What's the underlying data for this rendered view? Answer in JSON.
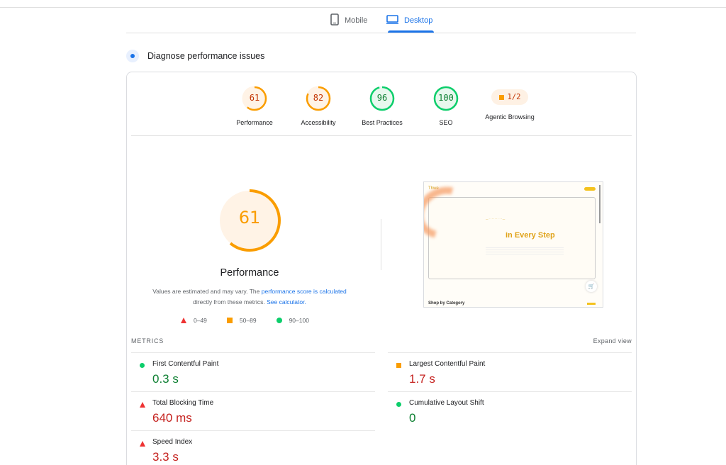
{
  "tabs": [
    {
      "label": "Mobile",
      "icon": "smartphone-icon",
      "active": false
    },
    {
      "label": "Desktop",
      "icon": "desktop-icon",
      "active": true
    }
  ],
  "section": {
    "title": "Diagnose performance issues",
    "icon": "diagnose-icon"
  },
  "gauges": [
    {
      "label": "Performance",
      "score": "61",
      "status": "average",
      "color": "#fa9d00"
    },
    {
      "label": "Accessibility",
      "score": "82",
      "status": "average",
      "color": "#fa9d00"
    },
    {
      "label": "Best Practices",
      "score": "96",
      "status": "pass",
      "color": "#0cce6b"
    },
    {
      "label": "SEO",
      "score": "100",
      "status": "pass",
      "color": "#0cce6b"
    },
    {
      "label": "Agentic Browsing",
      "score": "1/2",
      "status": "average",
      "color": "#fa9d00"
    }
  ],
  "performance": {
    "score": "61",
    "score_fraction": 0.61,
    "title": "Performance",
    "desc_1": "Values are estimated and may vary. The ",
    "desc_link_1": "performance score is calculated",
    "desc_2": " directly from these metrics. ",
    "desc_link_2": "See calculator."
  },
  "legend": [
    {
      "range": "0–49",
      "shape": "triangle",
      "color": "#ee3333"
    },
    {
      "range": "50–89",
      "shape": "square",
      "color": "#fa9d00"
    },
    {
      "range": "90–100",
      "shape": "circle",
      "color": "#0cce6b"
    }
  ],
  "screenshot": {
    "brand": "Thwe",
    "headline": "in Every Step",
    "category": "Shop by Category"
  },
  "metrics": {
    "title": "METRICS",
    "expand": "Expand view",
    "items": [
      {
        "name": "First Contentful Paint",
        "value": "0.3 s",
        "status": "pass"
      },
      {
        "name": "Largest Contentful Paint",
        "value": "1.7 s",
        "status": "average"
      },
      {
        "name": "Total Blocking Time",
        "value": "640 ms",
        "status": "fail"
      },
      {
        "name": "Cumulative Layout Shift",
        "value": "0",
        "status": "pass"
      },
      {
        "name": "Speed Index",
        "value": "3.3 s",
        "status": "fail"
      }
    ]
  }
}
